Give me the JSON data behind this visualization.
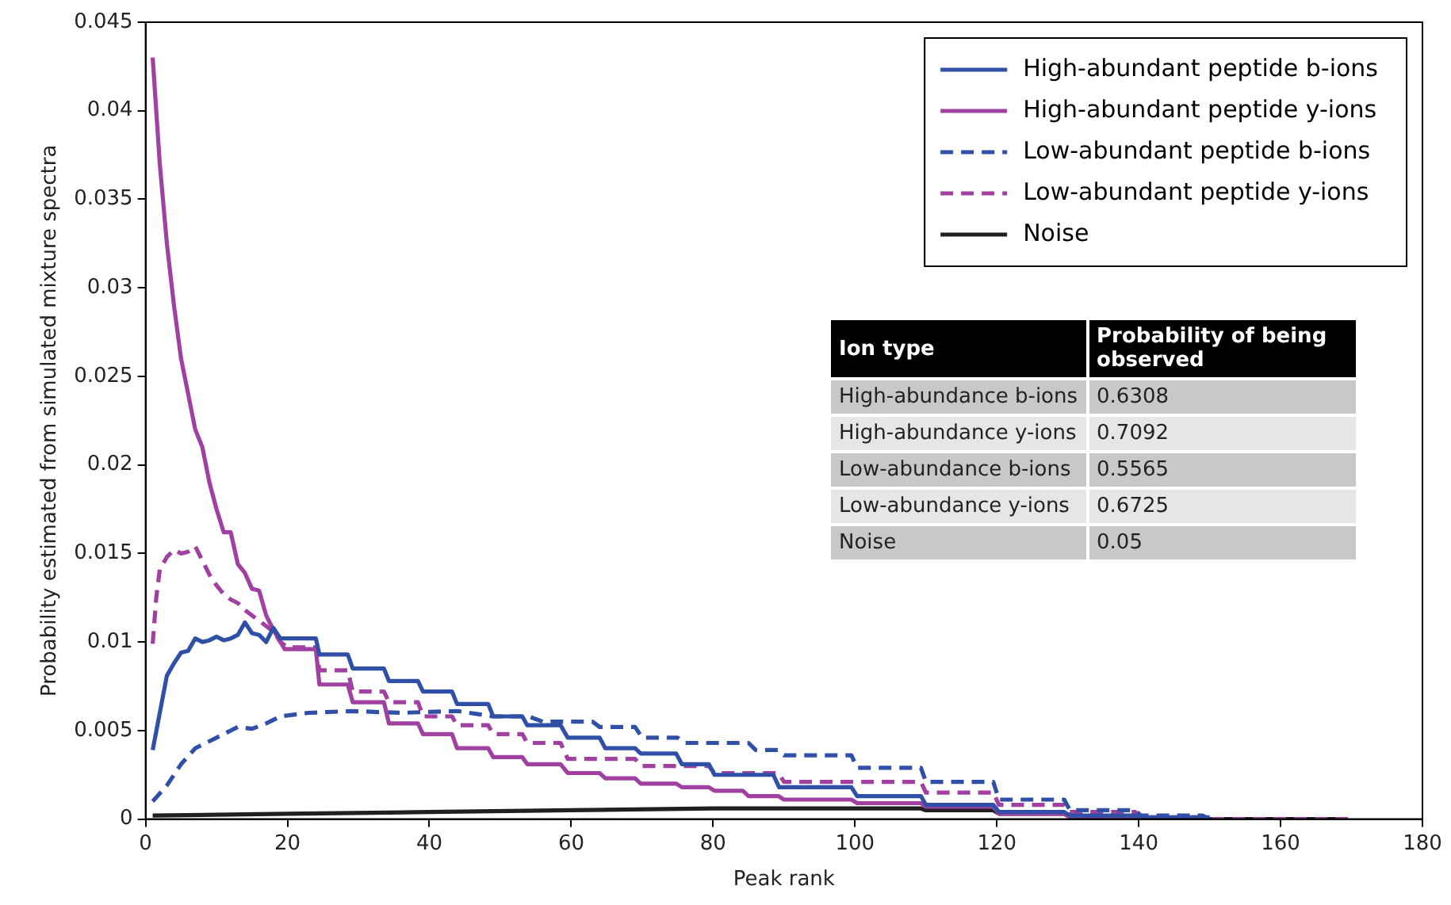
{
  "chart_data": {
    "type": "line",
    "xlabel": "Peak rank",
    "ylabel": "Probability estimated from simulated mixture spectra",
    "xlim": [
      0,
      180
    ],
    "xticks": [
      0,
      20,
      40,
      60,
      80,
      100,
      120,
      140,
      160,
      180
    ],
    "ylim": [
      0,
      0.045
    ],
    "yticks": [
      0,
      0.005,
      0.01,
      0.015,
      0.02,
      0.025,
      0.03,
      0.035,
      0.04,
      0.045
    ],
    "grid": false,
    "legend": "top right",
    "marker": "none",
    "series": [
      {
        "name": "High-abundant peptide b-ions",
        "color": "#3050a8",
        "line_style": "solid",
        "x": [
          1,
          2,
          3,
          4,
          5,
          6,
          7,
          8,
          9,
          10,
          11,
          12,
          13,
          14,
          15,
          16,
          17,
          18,
          19,
          24,
          24.5,
          28.5,
          29.2,
          33.6,
          34.3,
          38.4,
          39.1,
          43.2,
          43.9,
          48.3,
          49,
          53.1,
          53.8,
          58.5,
          59.5,
          64,
          64.8,
          69,
          69.8,
          74.8,
          75.6,
          79.4,
          80.2,
          88.5,
          89.3,
          99.5,
          100.3,
          109.3,
          110,
          119.5,
          120.3,
          129.5,
          130.3,
          139.5,
          140.3,
          150
        ],
        "values": [
          0.0039,
          0.006,
          0.0081,
          0.0088,
          0.0094,
          0.0095,
          0.0102,
          0.01,
          0.0101,
          0.0103,
          0.0101,
          0.0102,
          0.0104,
          0.0111,
          0.0105,
          0.0104,
          0.01,
          0.0108,
          0.0102,
          0.0102,
          0.0093,
          0.0093,
          0.0085,
          0.0085,
          0.0078,
          0.0078,
          0.0072,
          0.0072,
          0.0065,
          0.0065,
          0.0058,
          0.0058,
          0.0053,
          0.0053,
          0.0046,
          0.0046,
          0.004,
          0.004,
          0.0037,
          0.0037,
          0.0031,
          0.0031,
          0.0025,
          0.0025,
          0.0018,
          0.0018,
          0.0013,
          0.0013,
          0.0008,
          0.0008,
          0.0004,
          0.0004,
          0.0002,
          0.0002,
          0.0001,
          0.0001
        ]
      },
      {
        "name": "High-abundant peptide y-ions",
        "color": "#a040a0",
        "line_style": "solid",
        "x": [
          1,
          2,
          3,
          4,
          5,
          6,
          7,
          8,
          9,
          10,
          11,
          12,
          13,
          14,
          15,
          16,
          17,
          18,
          19.6,
          24,
          24.5,
          28.5,
          29.2,
          33.6,
          34.3,
          38.4,
          39.1,
          43.2,
          43.9,
          48.3,
          49,
          53.1,
          53.8,
          58.5,
          59.5,
          64,
          64.8,
          69,
          69.8,
          74.8,
          75.6,
          79.4,
          80.2,
          84.2,
          85,
          89.2,
          90,
          99.5,
          100.3,
          109.3,
          110,
          119.5,
          120.3,
          129.5,
          130.3,
          139.5,
          140.3,
          150
        ],
        "values": [
          0.043,
          0.037,
          0.0325,
          0.029,
          0.026,
          0.024,
          0.022,
          0.021,
          0.019,
          0.0175,
          0.0162,
          0.0162,
          0.0144,
          0.0139,
          0.013,
          0.0129,
          0.0115,
          0.0107,
          0.0096,
          0.0096,
          0.0076,
          0.0076,
          0.0066,
          0.0066,
          0.0054,
          0.0054,
          0.0048,
          0.0048,
          0.004,
          0.004,
          0.0035,
          0.0035,
          0.0031,
          0.0031,
          0.0026,
          0.0026,
          0.0023,
          0.0023,
          0.002,
          0.002,
          0.0018,
          0.0018,
          0.0016,
          0.0016,
          0.0013,
          0.0013,
          0.0011,
          0.0011,
          0.0009,
          0.0009,
          0.0007,
          0.0007,
          0.0003,
          0.0003,
          0.0001,
          0.0001,
          0,
          0
        ]
      },
      {
        "name": "Low-abundant peptide b-ions",
        "color": "#3050a8",
        "line_style": "dashed",
        "x": [
          1,
          3,
          5,
          7,
          10,
          11,
          13,
          15,
          17,
          19,
          23,
          29,
          36,
          44,
          49,
          54,
          56,
          63,
          64,
          69,
          70,
          75,
          76,
          85,
          86,
          89.2,
          90,
          99.5,
          100.3,
          109.3,
          110,
          119.5,
          120.3,
          129.5,
          130.3,
          139.5,
          140.3,
          149,
          150
        ],
        "values": [
          0.001,
          0.0019,
          0.0031,
          0.004,
          0.0046,
          0.0048,
          0.0052,
          0.0051,
          0.0054,
          0.0058,
          0.006,
          0.0061,
          0.006,
          0.0061,
          0.0058,
          0.0058,
          0.0055,
          0.0055,
          0.0052,
          0.0052,
          0.0046,
          0.0046,
          0.0043,
          0.0043,
          0.0039,
          0.0039,
          0.0036,
          0.0036,
          0.0029,
          0.0029,
          0.0021,
          0.0021,
          0.0011,
          0.0011,
          0.0005,
          0.0005,
          0.0002,
          0.0002,
          0
        ]
      },
      {
        "name": "Low-abundant peptide y-ions",
        "color": "#a040a0",
        "line_style": "dashed",
        "x": [
          1,
          1.5,
          2,
          3,
          4,
          5,
          6,
          7,
          8,
          9,
          10,
          11,
          12,
          13,
          14,
          16,
          18,
          19,
          20,
          24,
          24.5,
          28.5,
          29.2,
          33.6,
          34.3,
          38.4,
          39.1,
          43.2,
          43.9,
          48.3,
          49,
          53.1,
          53.8,
          58.5,
          59.5,
          69,
          69.8,
          79.4,
          80.2,
          89.2,
          90,
          109.3,
          110,
          119.5,
          120.3,
          129.5,
          130.3,
          139.5,
          140.3,
          149.5,
          150.3,
          170
        ],
        "values": [
          0.0099,
          0.0125,
          0.0141,
          0.0148,
          0.0152,
          0.015,
          0.0151,
          0.0154,
          0.0146,
          0.0138,
          0.0132,
          0.0127,
          0.0124,
          0.0122,
          0.0118,
          0.0112,
          0.0106,
          0.01,
          0.0097,
          0.0097,
          0.0084,
          0.0084,
          0.0072,
          0.0072,
          0.0066,
          0.0066,
          0.0058,
          0.0058,
          0.0053,
          0.0053,
          0.0048,
          0.0048,
          0.0043,
          0.0043,
          0.0034,
          0.0034,
          0.003,
          0.003,
          0.0026,
          0.0026,
          0.0021,
          0.0021,
          0.0015,
          0.0015,
          0.0008,
          0.0008,
          0.0004,
          0.0004,
          0.0001,
          0.0001,
          0,
          0
        ]
      },
      {
        "name": "Noise",
        "color": "#202020",
        "line_style": "solid",
        "x": [
          1,
          20,
          40,
          60,
          80,
          100,
          109.3,
          110,
          119.5,
          120.3,
          129.5,
          130.3,
          139.5,
          140.3,
          168
        ],
        "values": [
          0.0002,
          0.0003,
          0.0004,
          0.0005,
          0.0006,
          0.0006,
          0.0006,
          0.0005,
          0.0005,
          0.0003,
          0.0003,
          0.0001,
          0.0001,
          0,
          0
        ]
      }
    ],
    "annotations": [
      "Ion type",
      "Probability of being observed",
      "High-abundance b-ions",
      "0.6308",
      "High-abundance y-ions",
      "0.7092",
      "Low-abundance b-ions",
      "0.5565",
      "Low-abundance y-ions",
      "0.6725",
      "Noise",
      "0.05"
    ]
  }
}
